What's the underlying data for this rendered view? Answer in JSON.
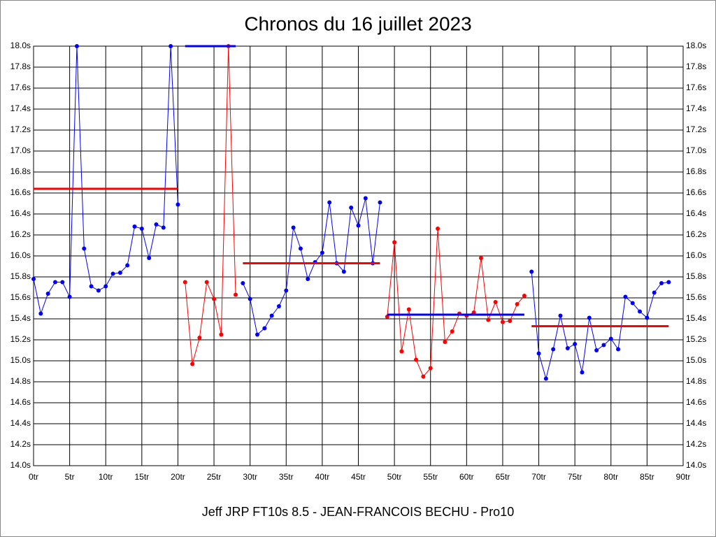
{
  "chart_data": {
    "type": "line",
    "title": "Chronos du 16 juillet 2023",
    "x_label": "Jeff JRP FT10s 8.5 - JEAN-FRANCOIS BECHU - Pro10",
    "xlim": [
      0,
      90
    ],
    "ylim": [
      14.0,
      18.0
    ],
    "grid": true,
    "xticks": [
      {
        "value": 0,
        "label": "0tr"
      },
      {
        "value": 5,
        "label": "5tr"
      },
      {
        "value": 10,
        "label": "10tr"
      },
      {
        "value": 15,
        "label": "15tr"
      },
      {
        "value": 20,
        "label": "20tr"
      },
      {
        "value": 25,
        "label": "25tr"
      },
      {
        "value": 30,
        "label": "30tr"
      },
      {
        "value": 35,
        "label": "35tr"
      },
      {
        "value": 40,
        "label": "40tr"
      },
      {
        "value": 45,
        "label": "45tr"
      },
      {
        "value": 50,
        "label": "50tr"
      },
      {
        "value": 55,
        "label": "55tr"
      },
      {
        "value": 60,
        "label": "60tr"
      },
      {
        "value": 65,
        "label": "65tr"
      },
      {
        "value": 70,
        "label": "70tr"
      },
      {
        "value": 75,
        "label": "75tr"
      },
      {
        "value": 80,
        "label": "80tr"
      },
      {
        "value": 85,
        "label": "85tr"
      },
      {
        "value": 90,
        "label": "90tr"
      }
    ],
    "yticks": [
      {
        "value": 14.0,
        "label": "14.0s"
      },
      {
        "value": 14.2,
        "label": "14.2s"
      },
      {
        "value": 14.4,
        "label": "14.4s"
      },
      {
        "value": 14.6,
        "label": "14.6s"
      },
      {
        "value": 14.8,
        "label": "14.8s"
      },
      {
        "value": 15.0,
        "label": "15.0s"
      },
      {
        "value": 15.2,
        "label": "15.2s"
      },
      {
        "value": 15.4,
        "label": "15.4s"
      },
      {
        "value": 15.6,
        "label": "15.6s"
      },
      {
        "value": 15.8,
        "label": "15.8s"
      },
      {
        "value": 16.0,
        "label": "16.0s"
      },
      {
        "value": 16.2,
        "label": "16.2s"
      },
      {
        "value": 16.4,
        "label": "16.4s"
      },
      {
        "value": 16.6,
        "label": "16.6s"
      },
      {
        "value": 16.8,
        "label": "16.8s"
      },
      {
        "value": 17.0,
        "label": "17.0s"
      },
      {
        "value": 17.2,
        "label": "17.2s"
      },
      {
        "value": 17.4,
        "label": "17.4s"
      },
      {
        "value": 17.6,
        "label": "17.6s"
      },
      {
        "value": 17.8,
        "label": "17.8s"
      },
      {
        "value": 18.0,
        "label": "18.0s"
      }
    ],
    "series": [
      {
        "color": "#0000ff",
        "x": [
          0,
          1,
          2,
          3,
          4,
          5,
          6,
          7,
          8,
          9,
          10,
          11,
          12,
          13,
          14,
          15,
          16,
          17,
          18,
          19,
          20
        ],
        "values": [
          15.78,
          15.45,
          15.64,
          15.75,
          15.75,
          15.61,
          18.0,
          16.07,
          15.71,
          15.67,
          15.71,
          15.83,
          15.84,
          15.91,
          16.28,
          16.26,
          15.98,
          16.3,
          16.27,
          18.0,
          16.49
        ]
      },
      {
        "color": "#ff0000",
        "x": [
          21,
          22,
          23,
          24,
          25,
          26,
          27,
          28
        ],
        "values": [
          15.75,
          14.97,
          15.22,
          15.75,
          15.59,
          15.25,
          18.0,
          15.63
        ]
      },
      {
        "color": "#0000ff",
        "x": [
          29,
          30,
          31,
          32,
          33,
          34,
          35,
          36,
          37,
          38,
          39,
          40,
          41,
          42,
          43,
          44,
          45,
          46,
          47,
          48
        ],
        "values": [
          15.74,
          15.59,
          15.25,
          15.31,
          15.43,
          15.52,
          15.67,
          16.27,
          16.07,
          15.78,
          15.94,
          16.03,
          16.51,
          15.93,
          15.85,
          16.46,
          16.29,
          16.55,
          15.93,
          16.51
        ]
      },
      {
        "color": "#ff0000",
        "x": [
          49,
          50,
          51,
          52,
          53,
          54,
          55,
          56,
          57,
          58,
          59,
          60,
          61,
          62,
          63,
          64,
          65,
          66,
          67,
          68
        ],
        "values": [
          15.42,
          16.13,
          15.09,
          15.49,
          15.01,
          14.85,
          14.93,
          16.26,
          15.18,
          15.28,
          15.45,
          15.43,
          15.46,
          15.98,
          15.39,
          15.56,
          15.37,
          15.38,
          15.54,
          15.62
        ]
      },
      {
        "color": "#0000ff",
        "x": [
          69,
          70,
          71,
          72,
          73,
          74,
          75,
          76,
          77,
          78,
          79,
          80,
          81,
          82,
          83,
          84,
          85,
          86,
          87,
          88
        ],
        "values": [
          15.85,
          15.07,
          14.83,
          15.11,
          15.43,
          15.12,
          15.16,
          14.89,
          15.41,
          15.1,
          15.15,
          15.21,
          15.11,
          15.61,
          15.55,
          15.47,
          15.41,
          15.65,
          15.74,
          15.75
        ]
      }
    ],
    "averages": [
      {
        "color": "#ff0000",
        "x": [
          0,
          20
        ],
        "value": 16.64
      },
      {
        "color": "#0000ff",
        "x": [
          21,
          28
        ],
        "value": 18.0
      },
      {
        "color": "#ff0000",
        "x": [
          29,
          48
        ],
        "value": 15.93
      },
      {
        "color": "#0000ff",
        "x": [
          49,
          68
        ],
        "value": 15.44
      },
      {
        "color": "#ff0000",
        "x": [
          69,
          88
        ],
        "value": 15.33
      }
    ]
  }
}
